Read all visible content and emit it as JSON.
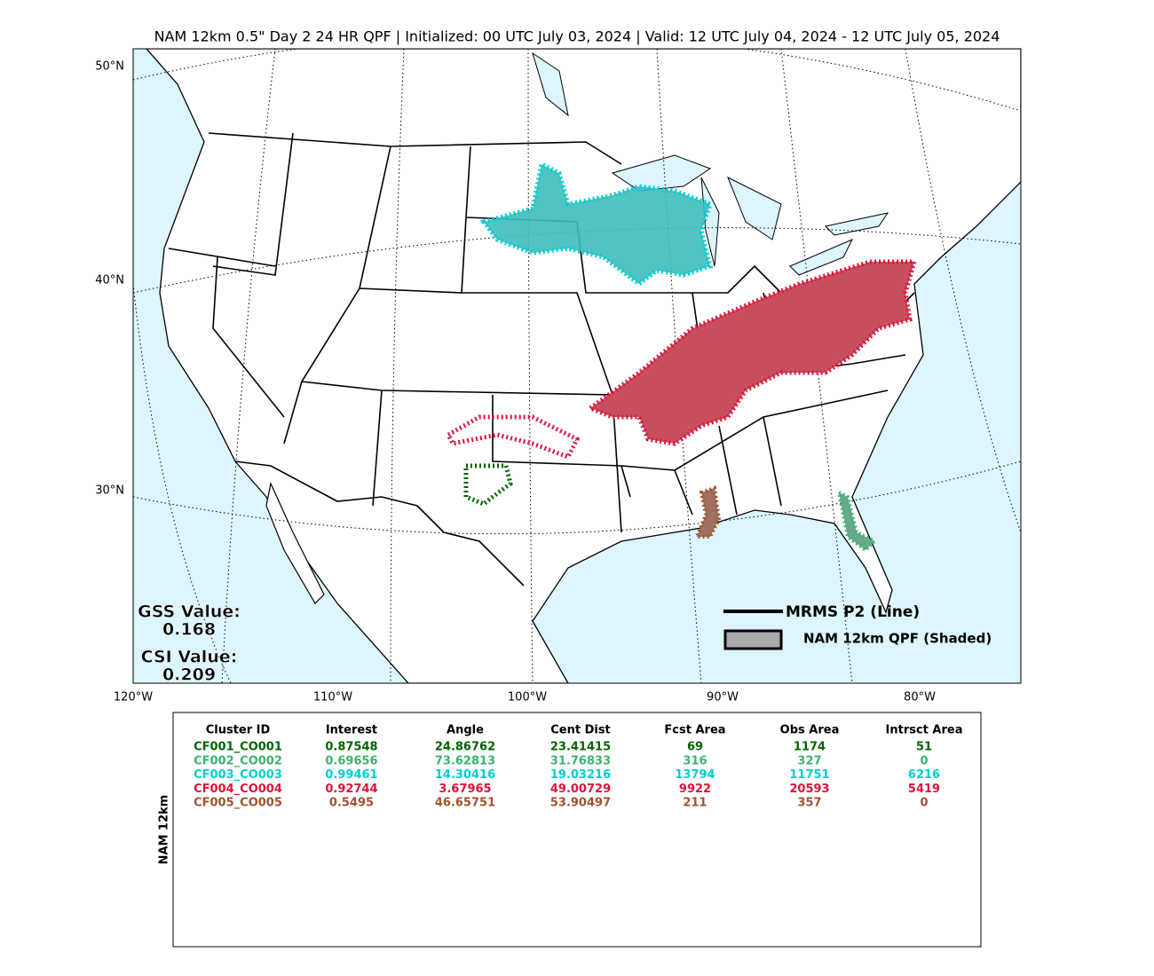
{
  "title": "NAM 12km 0.5\" Day 2 24 HR QPF | Initialized: 00 UTC July 03, 2024 | Valid: 12 UTC July 04, 2024 - 12 UTC July 05, 2024",
  "map": {
    "lat_labels": [
      "50°N",
      "40°N",
      "30°N"
    ],
    "lon_labels": [
      "120°W",
      "110°W",
      "100°W",
      "90°W",
      "80°W"
    ],
    "gss": {
      "label": "GSS Value:",
      "value": 0.168
    },
    "csi": {
      "label": "CSI Value:",
      "value": 0.209
    },
    "legend": [
      "MRMS P2 (Line)",
      "NAM 12km QPF (Shaded)"
    ]
  },
  "table": {
    "side_label": "NAM 12km",
    "columns": [
      "Cluster ID",
      "Interest",
      "Angle",
      "Cent Dist",
      "Fcst Area",
      "Obs Area",
      "Intrsct Area"
    ],
    "rows": [
      {
        "color": "#006400",
        "cells": [
          "CF001_CO001",
          0.87548,
          24.86762,
          23.41415,
          69,
          1174,
          51
        ]
      },
      {
        "color": "#3cb371",
        "cells": [
          "CF002_CO002",
          0.69656,
          73.62813,
          31.76833,
          316,
          327,
          0
        ]
      },
      {
        "color": "#00ced1",
        "cells": [
          "CF003_CO003",
          0.99461,
          14.30416,
          19.03216,
          13794,
          11751,
          6216
        ]
      },
      {
        "color": "#dc143c",
        "cells": [
          "CF004_CO004",
          0.92744,
          3.67965,
          49.00729,
          9922,
          20593,
          5419
        ]
      },
      {
        "color": "#a0522d",
        "cells": [
          "CF005_CO005",
          0.5495,
          46.65751,
          53.90497,
          211,
          357,
          0
        ]
      }
    ]
  }
}
